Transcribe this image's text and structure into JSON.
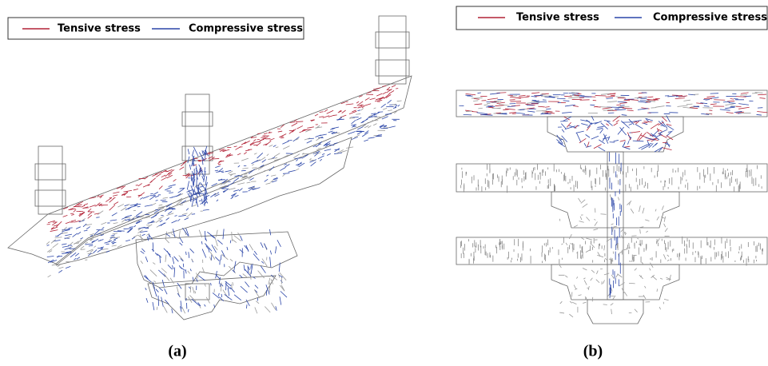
{
  "panel_a": {
    "legend": [
      "Tensive stress",
      "Compressive stress"
    ],
    "label": "(a)"
  },
  "panel_b": {
    "legend": [
      "Tensive stress",
      "Compressive stress"
    ],
    "label": "(b)"
  }
}
